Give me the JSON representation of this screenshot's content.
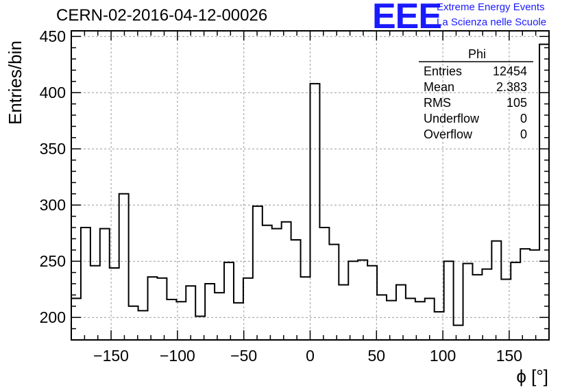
{
  "title": "CERN-02-2016-04-12-00026",
  "logo": {
    "mark": "EEE",
    "line1": "Extreme Energy Events",
    "line2": "La Scienza nelle Scuole",
    "color": "#1a1aff"
  },
  "stats": {
    "name": "Phi",
    "rows": [
      {
        "label": "Entries",
        "value": "12454"
      },
      {
        "label": "Mean",
        "value": "2.383"
      },
      {
        "label": "RMS",
        "value": "105"
      },
      {
        "label": "Underflow",
        "value": "0"
      },
      {
        "label": "Overflow",
        "value": "0"
      }
    ]
  },
  "chart_data": {
    "type": "histogram",
    "xlabel": "ϕ [°]",
    "ylabel": "Entries/bin",
    "xlim": [
      -180,
      180
    ],
    "ylim": [
      180,
      455
    ],
    "bin_width": 7.2,
    "grid": true,
    "xticks": [
      -150,
      -100,
      -50,
      0,
      50,
      100,
      150
    ],
    "xtick_labels": [
      "−150",
      "−100",
      "−50",
      "0",
      "50",
      "100",
      "150"
    ],
    "yticks": [
      200,
      250,
      300,
      350,
      400,
      450
    ],
    "ytick_labels": [
      "200",
      "250",
      "300",
      "350",
      "400",
      "450"
    ],
    "values": [
      217,
      280,
      246,
      279,
      244,
      310,
      210,
      206,
      236,
      235,
      216,
      214,
      228,
      201,
      230,
      222,
      249,
      213,
      235,
      299,
      282,
      279,
      285,
      269,
      236,
      408,
      280,
      265,
      229,
      250,
      251,
      246,
      220,
      215,
      229,
      217,
      214,
      217,
      205,
      250,
      193,
      248,
      238,
      243,
      268,
      234,
      249,
      261,
      260,
      443
    ]
  }
}
